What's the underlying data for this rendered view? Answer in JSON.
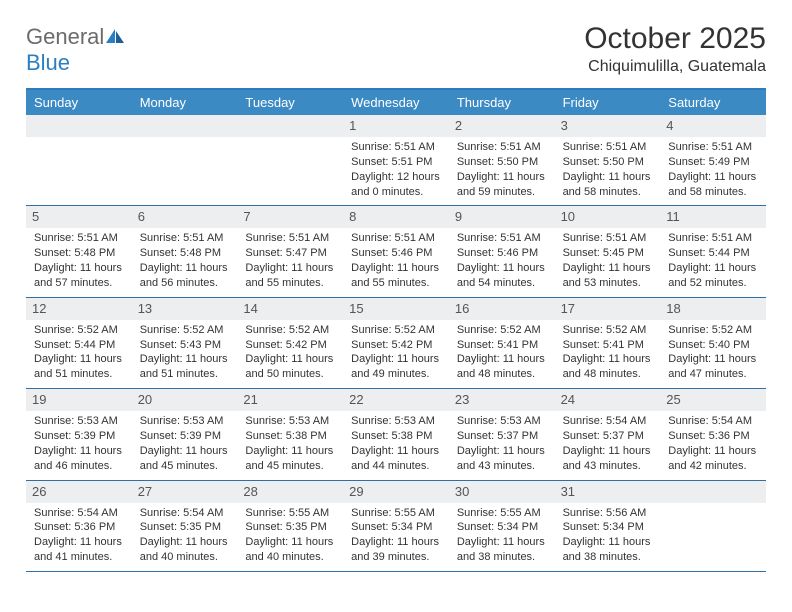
{
  "logo": {
    "text1": "General",
    "text2": "Blue"
  },
  "title": "October 2025",
  "location": "Chiquimulilla, Guatemala",
  "colors": {
    "header_bg": "#3b8ac4",
    "header_border": "#307bbd",
    "week_border": "#2f6fa7",
    "daynum_bg": "#eceeef",
    "text": "#333333",
    "logo_gray": "#6b6b6b",
    "logo_blue": "#2a7fc4"
  },
  "dayNames": [
    "Sunday",
    "Monday",
    "Tuesday",
    "Wednesday",
    "Thursday",
    "Friday",
    "Saturday"
  ],
  "weeks": [
    [
      {
        "empty": true
      },
      {
        "empty": true
      },
      {
        "empty": true
      },
      {
        "n": "1",
        "sr": "5:51 AM",
        "ss": "5:51 PM",
        "dl": "12 hours and 0 minutes."
      },
      {
        "n": "2",
        "sr": "5:51 AM",
        "ss": "5:50 PM",
        "dl": "11 hours and 59 minutes."
      },
      {
        "n": "3",
        "sr": "5:51 AM",
        "ss": "5:50 PM",
        "dl": "11 hours and 58 minutes."
      },
      {
        "n": "4",
        "sr": "5:51 AM",
        "ss": "5:49 PM",
        "dl": "11 hours and 58 minutes."
      }
    ],
    [
      {
        "n": "5",
        "sr": "5:51 AM",
        "ss": "5:48 PM",
        "dl": "11 hours and 57 minutes."
      },
      {
        "n": "6",
        "sr": "5:51 AM",
        "ss": "5:48 PM",
        "dl": "11 hours and 56 minutes."
      },
      {
        "n": "7",
        "sr": "5:51 AM",
        "ss": "5:47 PM",
        "dl": "11 hours and 55 minutes."
      },
      {
        "n": "8",
        "sr": "5:51 AM",
        "ss": "5:46 PM",
        "dl": "11 hours and 55 minutes."
      },
      {
        "n": "9",
        "sr": "5:51 AM",
        "ss": "5:46 PM",
        "dl": "11 hours and 54 minutes."
      },
      {
        "n": "10",
        "sr": "5:51 AM",
        "ss": "5:45 PM",
        "dl": "11 hours and 53 minutes."
      },
      {
        "n": "11",
        "sr": "5:51 AM",
        "ss": "5:44 PM",
        "dl": "11 hours and 52 minutes."
      }
    ],
    [
      {
        "n": "12",
        "sr": "5:52 AM",
        "ss": "5:44 PM",
        "dl": "11 hours and 51 minutes."
      },
      {
        "n": "13",
        "sr": "5:52 AM",
        "ss": "5:43 PM",
        "dl": "11 hours and 51 minutes."
      },
      {
        "n": "14",
        "sr": "5:52 AM",
        "ss": "5:42 PM",
        "dl": "11 hours and 50 minutes."
      },
      {
        "n": "15",
        "sr": "5:52 AM",
        "ss": "5:42 PM",
        "dl": "11 hours and 49 minutes."
      },
      {
        "n": "16",
        "sr": "5:52 AM",
        "ss": "5:41 PM",
        "dl": "11 hours and 48 minutes."
      },
      {
        "n": "17",
        "sr": "5:52 AM",
        "ss": "5:41 PM",
        "dl": "11 hours and 48 minutes."
      },
      {
        "n": "18",
        "sr": "5:52 AM",
        "ss": "5:40 PM",
        "dl": "11 hours and 47 minutes."
      }
    ],
    [
      {
        "n": "19",
        "sr": "5:53 AM",
        "ss": "5:39 PM",
        "dl": "11 hours and 46 minutes."
      },
      {
        "n": "20",
        "sr": "5:53 AM",
        "ss": "5:39 PM",
        "dl": "11 hours and 45 minutes."
      },
      {
        "n": "21",
        "sr": "5:53 AM",
        "ss": "5:38 PM",
        "dl": "11 hours and 45 minutes."
      },
      {
        "n": "22",
        "sr": "5:53 AM",
        "ss": "5:38 PM",
        "dl": "11 hours and 44 minutes."
      },
      {
        "n": "23",
        "sr": "5:53 AM",
        "ss": "5:37 PM",
        "dl": "11 hours and 43 minutes."
      },
      {
        "n": "24",
        "sr": "5:54 AM",
        "ss": "5:37 PM",
        "dl": "11 hours and 43 minutes."
      },
      {
        "n": "25",
        "sr": "5:54 AM",
        "ss": "5:36 PM",
        "dl": "11 hours and 42 minutes."
      }
    ],
    [
      {
        "n": "26",
        "sr": "5:54 AM",
        "ss": "5:36 PM",
        "dl": "11 hours and 41 minutes."
      },
      {
        "n": "27",
        "sr": "5:54 AM",
        "ss": "5:35 PM",
        "dl": "11 hours and 40 minutes."
      },
      {
        "n": "28",
        "sr": "5:55 AM",
        "ss": "5:35 PM",
        "dl": "11 hours and 40 minutes."
      },
      {
        "n": "29",
        "sr": "5:55 AM",
        "ss": "5:34 PM",
        "dl": "11 hours and 39 minutes."
      },
      {
        "n": "30",
        "sr": "5:55 AM",
        "ss": "5:34 PM",
        "dl": "11 hours and 38 minutes."
      },
      {
        "n": "31",
        "sr": "5:56 AM",
        "ss": "5:34 PM",
        "dl": "11 hours and 38 minutes."
      },
      {
        "empty": true
      }
    ]
  ],
  "labels": {
    "sunrise": "Sunrise:",
    "sunset": "Sunset:",
    "daylight": "Daylight:"
  }
}
